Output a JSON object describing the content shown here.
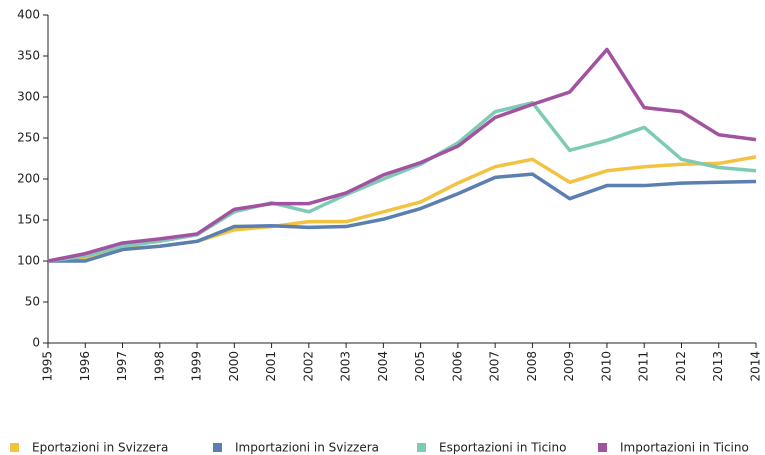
{
  "chart_data": {
    "type": "line",
    "categories": [
      "1995",
      "1996",
      "1997",
      "1998",
      "1999",
      "2000",
      "2001",
      "2002",
      "2003",
      "2004",
      "2005",
      "2006",
      "2007",
      "2008",
      "2009",
      "2010",
      "2011",
      "2012",
      "2013",
      "2014"
    ],
    "series": [
      {
        "name": "Eportazioni in Svizzera",
        "color": "#f3c240",
        "values": [
          100,
          102,
          115,
          118,
          124,
          138,
          142,
          148,
          148,
          160,
          172,
          195,
          215,
          224,
          196,
          210,
          215,
          218,
          219,
          227
        ]
      },
      {
        "name": "Importazioni in Svizzera",
        "color": "#5a7fb0",
        "values": [
          100,
          100,
          114,
          118,
          124,
          142,
          143,
          141,
          142,
          151,
          164,
          182,
          202,
          206,
          176,
          192,
          192,
          195,
          196,
          197
        ]
      },
      {
        "name": "Esportazioni in Ticino",
        "color": "#7ecab5",
        "values": [
          100,
          106,
          118,
          124,
          132,
          160,
          171,
          160,
          181,
          200,
          218,
          244,
          282,
          293,
          235,
          247,
          263,
          224,
          214,
          210
        ]
      },
      {
        "name": "Importazioni in Ticino",
        "color": "#a253a0",
        "values": [
          100,
          109,
          122,
          127,
          133,
          163,
          170,
          170,
          183,
          205,
          220,
          240,
          275,
          291,
          306,
          358,
          287,
          282,
          254,
          248
        ]
      }
    ],
    "ylim": [
      0,
      400
    ],
    "yticks": [
      0,
      50,
      100,
      150,
      200,
      250,
      300,
      350,
      400
    ],
    "grid": false
  }
}
